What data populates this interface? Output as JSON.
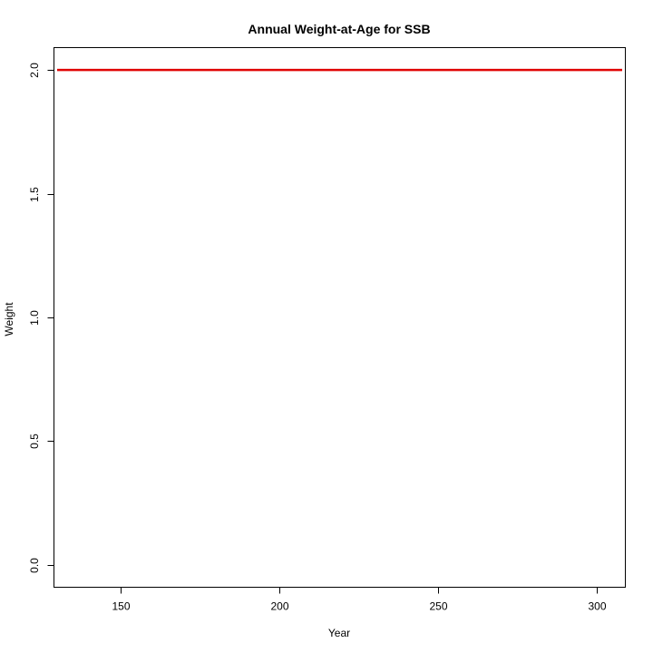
{
  "chart_data": {
    "type": "line",
    "title": "Annual Weight-at-Age for SSB",
    "xlabel": "Year",
    "ylabel": "Weight",
    "xlim": [
      129,
      309
    ],
    "ylim": [
      -0.09,
      2.09
    ],
    "x_ticks": [
      150,
      200,
      250,
      300
    ],
    "x_tick_labels": [
      "150",
      "200",
      "250",
      "300"
    ],
    "y_ticks": [
      0.0,
      0.5,
      1.0,
      1.5,
      2.0
    ],
    "y_tick_labels": [
      "0.0",
      "0.5",
      "1.0",
      "1.5",
      "2.0"
    ],
    "grid": false,
    "series": [
      {
        "color": "#e00000",
        "x": [
          130,
          308
        ],
        "y": [
          2.0,
          2.0
        ]
      }
    ]
  }
}
